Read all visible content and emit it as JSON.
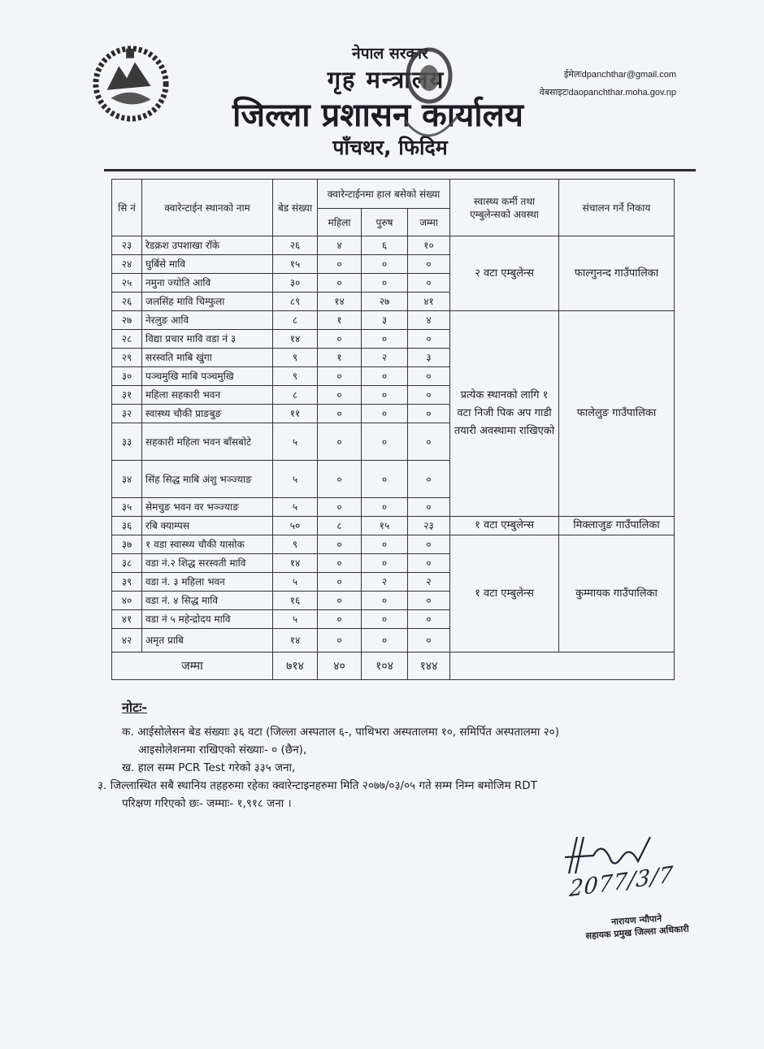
{
  "header": {
    "government": "नेपाल सरकार",
    "ministry": "गृह मन्त्रालय",
    "office": "जिल्ला प्रशासन कार्यालय",
    "place": "पाँचथर, फिदिम",
    "email_label": "ईमेलः",
    "email": "dpanchthar@gmail.com",
    "website_label": "वेबसाइटः",
    "website": "daopanchthar.moha.gov.np"
  },
  "table": {
    "headers": {
      "sn": "सि नं",
      "name": "क्वारेन्टाईन स्थानको नाम",
      "beds": "बेड संख्या",
      "current": "क्वारेन्टाईनमा हाल बसेको संख्या",
      "women": "महिला",
      "men": "पुरुष",
      "total": "जम्मा",
      "health": "स्वास्थ्य कर्मी तथा एम्बुलेन्सको अवस्था",
      "org": "संचालन गर्ने निकाय"
    },
    "rows": [
      {
        "sn": "२३",
        "name": "रेडक्रश उपशाखा राँके",
        "beds": "२६",
        "women": "४",
        "men": "६",
        "total": "१०"
      },
      {
        "sn": "२४",
        "name": "घुर्बिसे मावि",
        "beds": "१५",
        "women": "०",
        "men": "०",
        "total": "०"
      },
      {
        "sn": "२५",
        "name": "नमुना ज्योति आवि",
        "beds": "३०",
        "women": "०",
        "men": "०",
        "total": "०"
      },
      {
        "sn": "२६",
        "name": "जलसिंह मावि चिम्फुला",
        "beds": "८९",
        "women": "१४",
        "men": "२७",
        "total": "४१"
      },
      {
        "sn": "२७",
        "name": "नेरलुङ आवि",
        "beds": "८",
        "women": "१",
        "men": "३",
        "total": "४"
      },
      {
        "sn": "२८",
        "name": "विद्या प्रचार मावि वडा नं ३",
        "beds": "१४",
        "women": "०",
        "men": "०",
        "total": "०"
      },
      {
        "sn": "२९",
        "name": "सरस्वति माबि खुंगा",
        "beds": "९",
        "women": "१",
        "men": "२",
        "total": "३"
      },
      {
        "sn": "३०",
        "name": "पञ्चमुखि माबि पञ्चमुखि",
        "beds": "९",
        "women": "०",
        "men": "०",
        "total": "०"
      },
      {
        "sn": "३१",
        "name": "महिला सहकारी भवन",
        "beds": "८",
        "women": "०",
        "men": "०",
        "total": "०"
      },
      {
        "sn": "३२",
        "name": "स्वास्थ्य चौकी प्राङबुङ",
        "beds": "११",
        "women": "०",
        "men": "०",
        "total": "०"
      },
      {
        "sn": "३३",
        "name": "सहकारी महिला भवन बाँसबोटे",
        "beds": "५",
        "women": "०",
        "men": "०",
        "total": "०"
      },
      {
        "sn": "३४",
        "name": "सिंह सिद्ध माबि अंशु भञ्ज्याङ",
        "beds": "५",
        "women": "०",
        "men": "०",
        "total": "०"
      },
      {
        "sn": "३५",
        "name": "सेमचुङ भवन वर भञ्ज्याङ",
        "beds": "५",
        "women": "०",
        "men": "०",
        "total": "०"
      },
      {
        "sn": "३६",
        "name": "रबि क्याम्पस",
        "beds": "५०",
        "women": "८",
        "men": "१५",
        "total": "२३"
      },
      {
        "sn": "३७",
        "name": "१ वडा स्वास्थ्य चौकी यासोक",
        "beds": "९",
        "women": "०",
        "men": "०",
        "total": "०"
      },
      {
        "sn": "३८",
        "name": "वडा नं.२ शिद्ध सरस्वती मावि",
        "beds": "१४",
        "women": "०",
        "men": "०",
        "total": "०"
      },
      {
        "sn": "३९",
        "name": "वडा नं. ३ महिला भवन",
        "beds": "५",
        "women": "०",
        "men": "२",
        "total": "२"
      },
      {
        "sn": "४०",
        "name": "वडा नं. ४ सिद्ध मावि",
        "beds": "१६",
        "women": "०",
        "men": "०",
        "total": "०"
      },
      {
        "sn": "४१",
        "name": "वडा नं ५ महेन्द्रोदय मावि",
        "beds": "५",
        "women": "०",
        "men": "०",
        "total": "०"
      },
      {
        "sn": "४२",
        "name": "अमृत प्राबि",
        "beds": "१४",
        "women": "०",
        "men": "०",
        "total": "०"
      }
    ],
    "groups": [
      {
        "start": 0,
        "span": 4,
        "health": "२ वटा एम्बुलेन्स",
        "org": "फाल्गुनन्द गाउँपालिका"
      },
      {
        "start": 4,
        "span": 9,
        "health": "प्रत्येक स्थानको लागि १ वटा निजी पिक अप गाडी तयारी अवस्थामा राखिएको",
        "org": "फालेलुङ गाउँपालिका"
      },
      {
        "start": 13,
        "span": 1,
        "health": "१ वटा एम्बुलेन्स",
        "org": "मिक्लाजुङ गाउँपालिका"
      },
      {
        "start": 14,
        "span": 6,
        "health": "१ वटा एम्बुलेन्स",
        "org": "कुम्मायक गाउँपालिका"
      }
    ],
    "totals": {
      "label": "जम्मा",
      "beds": "७१४",
      "women": "४०",
      "men": "१०४",
      "total": "१४४"
    }
  },
  "notes": {
    "title": "नोटः-",
    "items": [
      "क.  आईसोलेसन बेड संख्याः ३६ वटा  (जिल्ला अस्पताल ६-, पाथिभरा अस्पतालमा १०, समिर्पित अस्पतालमा २०)",
      "आइसोलेशनमा राखिएको संख्याः-  ० (छैन),",
      "ख.  हाल सम्म  PCR Test  गरेको ३३५ जना,",
      "३.  जिल्लास्थित सबै स्थानिय तहहरुमा रहेका क्वारेन्टाइनहरुमा मिति २०७७/०३/०५ गते सम्म निम्न बमोजिम RDT",
      "परिक्षण गरिएको छः- जम्माः- १,९१८ जना ।"
    ]
  },
  "signature": {
    "handwritten_date": "2077/3/7",
    "name": "नारायण न्यौपाने",
    "designation": "सहायक प्रमुख जिल्ला अधिकारी"
  }
}
